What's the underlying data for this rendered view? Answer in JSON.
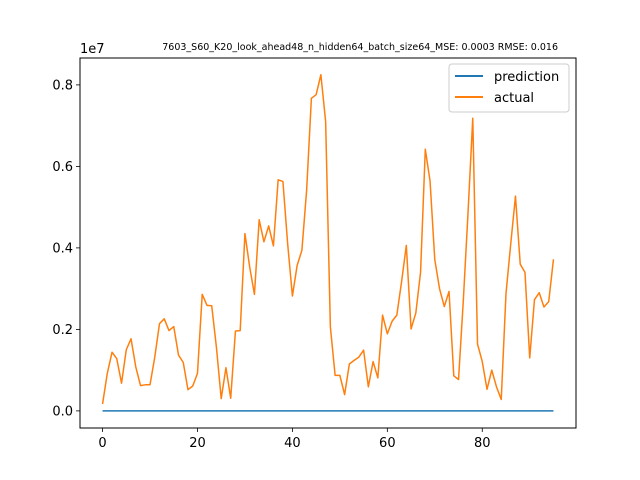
{
  "chart_data": {
    "type": "line",
    "title": "7603_S60_K20_look_ahead48_n_hidden64_batch_size64_MSE: 0.0003 RMSE: 0.016",
    "offset_text": "1e7",
    "xlabel": "",
    "ylabel": "",
    "xlim": [
      -4.75,
      99.75
    ],
    "ylim": [
      -0.42,
      8.66
    ],
    "xticks": [
      0,
      20,
      40,
      60,
      80
    ],
    "yticks": [
      0.0,
      0.2,
      0.4,
      0.6,
      0.8
    ],
    "ytick_scale": 10,
    "legend_position": "top-right",
    "grid": false,
    "series": [
      {
        "name": "prediction",
        "color": "#1f77b4",
        "constant": 0,
        "length": 96
      },
      {
        "name": "actual",
        "color": "#ff7f0e",
        "values": [
          0.17,
          0.92,
          1.44,
          1.28,
          0.68,
          1.5,
          1.77,
          1.08,
          0.62,
          0.64,
          0.64,
          1.32,
          2.14,
          2.26,
          1.97,
          2.07,
          1.37,
          1.19,
          0.52,
          0.61,
          0.92,
          2.86,
          2.59,
          2.58,
          1.55,
          0.3,
          1.06,
          0.31,
          1.96,
          1.97,
          4.35,
          3.53,
          2.86,
          4.69,
          4.15,
          4.54,
          4.05,
          5.67,
          5.63,
          4.1,
          2.82,
          3.57,
          3.94,
          5.42,
          7.67,
          7.76,
          8.25,
          7.1,
          2.06,
          0.87,
          0.87,
          0.4,
          1.15,
          1.24,
          1.32,
          1.49,
          0.59,
          1.21,
          0.81,
          2.35,
          1.89,
          2.2,
          2.35,
          3.17,
          4.06,
          2.01,
          2.4,
          3.4,
          6.42,
          5.64,
          3.71,
          3.0,
          2.56,
          2.93,
          0.86,
          0.77,
          2.69,
          4.86,
          7.18,
          1.64,
          1.21,
          0.53,
          1.0,
          0.59,
          0.28,
          2.88,
          4.1,
          5.27,
          3.6,
          3.4,
          1.3,
          2.73,
          2.9,
          2.55,
          2.68,
          3.72
        ]
      }
    ]
  }
}
